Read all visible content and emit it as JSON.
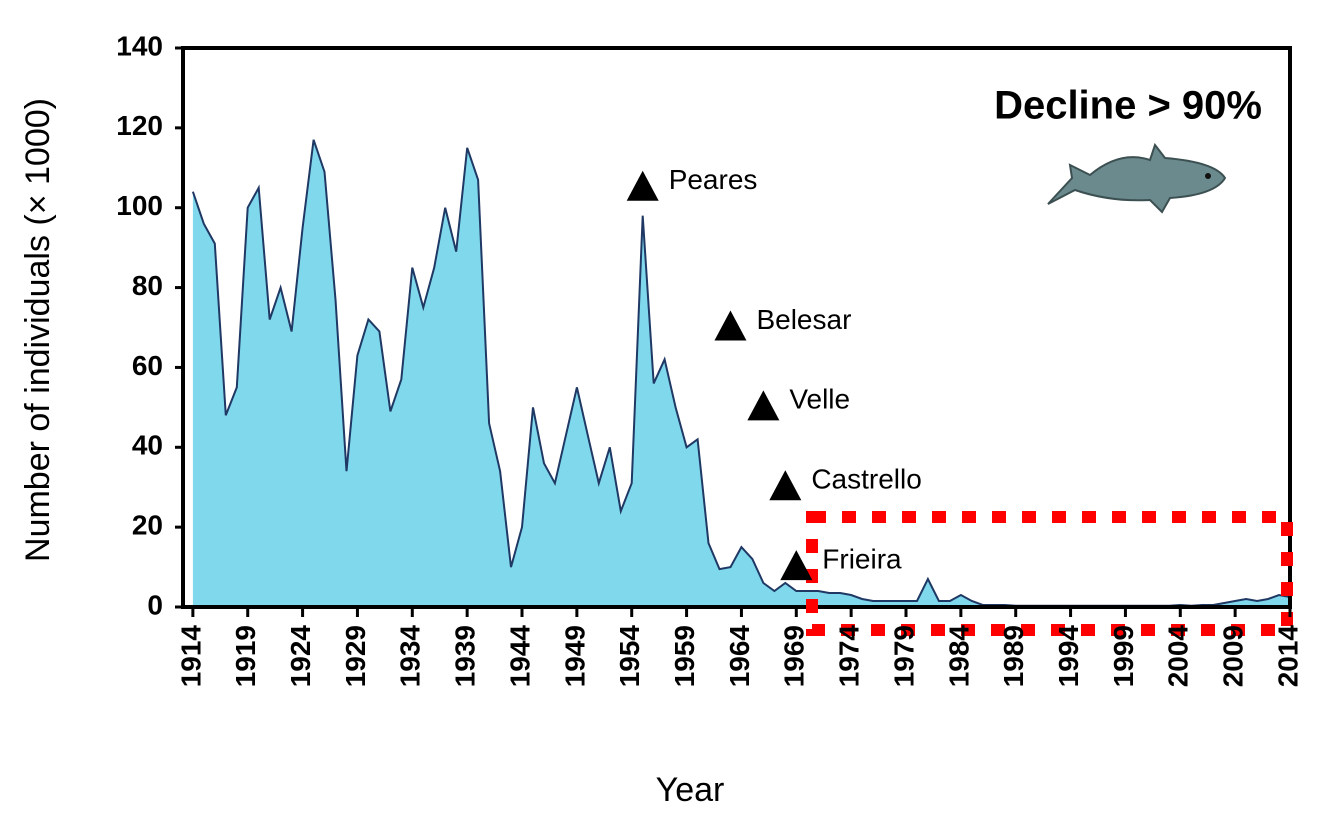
{
  "chart_data": {
    "type": "area",
    "ylabel": "Number of individuals (× 1000)",
    "xlabel": "Year",
    "annotation_title": "Decline > 90%",
    "x": [
      1914,
      1915,
      1916,
      1917,
      1918,
      1919,
      1920,
      1921,
      1922,
      1923,
      1924,
      1925,
      1926,
      1927,
      1928,
      1929,
      1930,
      1931,
      1932,
      1933,
      1934,
      1935,
      1936,
      1937,
      1938,
      1939,
      1940,
      1941,
      1942,
      1943,
      1944,
      1945,
      1946,
      1947,
      1948,
      1949,
      1950,
      1951,
      1952,
      1953,
      1954,
      1955,
      1956,
      1957,
      1958,
      1959,
      1960,
      1961,
      1962,
      1963,
      1964,
      1965,
      1966,
      1967,
      1968,
      1969,
      1970,
      1971,
      1972,
      1973,
      1974,
      1975,
      1976,
      1977,
      1978,
      1979,
      1980,
      1981,
      1982,
      1983,
      1984,
      1985,
      1986,
      1987,
      1988,
      1989,
      1990,
      1991,
      1992,
      1993,
      1994,
      1995,
      1996,
      1997,
      1998,
      1999,
      2000,
      2001,
      2002,
      2003,
      2004,
      2005,
      2006,
      2007,
      2008,
      2009,
      2010,
      2011,
      2012,
      2013,
      2014
    ],
    "values": [
      104,
      96,
      91,
      48,
      55,
      100,
      105,
      72,
      80,
      69,
      95,
      117,
      109,
      77,
      34,
      63,
      72,
      69,
      49,
      57,
      85,
      75,
      85,
      100,
      89,
      115,
      107,
      46,
      34,
      10,
      20,
      50,
      36,
      31,
      43,
      55,
      43,
      31,
      40,
      24,
      31,
      98,
      56,
      62,
      50,
      40,
      42,
      16,
      9.5,
      10,
      15,
      12,
      6,
      4,
      6,
      4,
      4,
      4,
      3.5,
      3.5,
      3,
      2,
      1.5,
      1.5,
      1.5,
      1.5,
      1.5,
      7,
      1.5,
      1.5,
      3,
      1.5,
      0.5,
      0.5,
      0.5,
      0.3,
      0.3,
      0.3,
      0.3,
      0.3,
      0.3,
      0.3,
      0.3,
      0.3,
      0.3,
      0.3,
      0.3,
      0.3,
      0.3,
      0.3,
      0.5,
      0.3,
      0.5,
      0.5,
      1,
      1.5,
      2,
      1.5,
      2,
      3,
      2.5
    ],
    "color": "#80d8ec",
    "line_color": "#1f3864",
    "xlim": [
      1913.1,
      2014
    ],
    "ylim": [
      0,
      140
    ],
    "xticks": [
      1914,
      1919,
      1924,
      1929,
      1934,
      1939,
      1944,
      1949,
      1954,
      1959,
      1964,
      1969,
      1974,
      1979,
      1984,
      1989,
      1994,
      1999,
      2004,
      2009,
      2014
    ],
    "yticks": [
      0,
      20,
      40,
      60,
      80,
      100,
      120,
      140
    ],
    "annotations": [
      {
        "text": "Peares",
        "x": 1955,
        "y": 105
      },
      {
        "text": "Belesar",
        "x": 1963,
        "y": 70
      },
      {
        "text": "Velle",
        "x": 1966,
        "y": 50
      },
      {
        "text": "Castrello",
        "x": 1968,
        "y": 30
      },
      {
        "text": "Frieira",
        "x": 1969,
        "y": 10
      }
    ]
  }
}
